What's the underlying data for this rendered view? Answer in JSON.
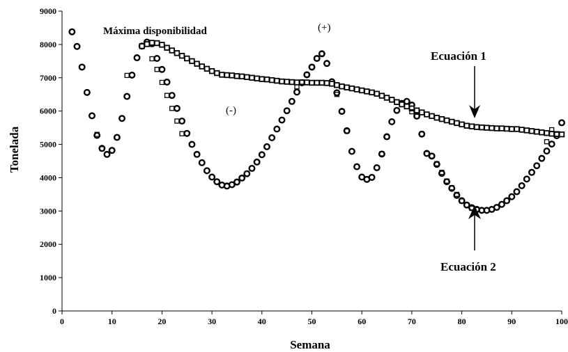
{
  "chart_data": {
    "type": "scatter",
    "xlabel": "Semana",
    "ylabel": "Tonelada",
    "xlim": [
      0,
      100
    ],
    "ylim": [
      0,
      9000
    ],
    "x_ticks": [
      "0",
      "10",
      "20",
      "30",
      "40",
      "50",
      "60",
      "70",
      "80",
      "90",
      "100"
    ],
    "y_ticks": [
      "0",
      "1000",
      "2000",
      "3000",
      "4000",
      "5000",
      "6000",
      "7000",
      "8000",
      "9000"
    ],
    "annotations": {
      "max_disp": "Máxima disponibilidad",
      "plus": "(+)",
      "minus": "(-)",
      "eq1": "Ecuación 1",
      "eq2": "Ecuación 2"
    },
    "series": [
      {
        "marker": "circle",
        "x": [
          2,
          3,
          4,
          5,
          6,
          7,
          8,
          9,
          10,
          11,
          12,
          13,
          14,
          15,
          16,
          17,
          18,
          19,
          20,
          21,
          22,
          23,
          24,
          25,
          26,
          27,
          28,
          29,
          30,
          31,
          32,
          33,
          34,
          35,
          36,
          37,
          38,
          39,
          40,
          41,
          42,
          43,
          44,
          45,
          46,
          47,
          48,
          49,
          50,
          51,
          52,
          53,
          54,
          55,
          56,
          57,
          58,
          59,
          60,
          61,
          62,
          63,
          64,
          65,
          66,
          67,
          68,
          69,
          70,
          71,
          72,
          73,
          74,
          75,
          76,
          77,
          78,
          79,
          80,
          81,
          82,
          83,
          84,
          85,
          86,
          87,
          88,
          89,
          90,
          91,
          92,
          93,
          94,
          95,
          96,
          97,
          98,
          99,
          100
        ],
        "y": [
          8380,
          7940,
          7320,
          6560,
          5860,
          5270,
          4880,
          4700,
          4820,
          5210,
          5780,
          6440,
          7080,
          7600,
          7950,
          8070,
          8020,
          7580,
          7250,
          6870,
          6470,
          6080,
          5700,
          5330,
          5000,
          4700,
          4450,
          4210,
          4020,
          3880,
          3780,
          3750,
          3790,
          3870,
          3990,
          4120,
          4280,
          4470,
          4690,
          4930,
          5200,
          5460,
          5730,
          6010,
          6290,
          6570,
          6850,
          7090,
          7320,
          7580,
          7720,
          7430,
          6880,
          6550,
          5990,
          5410,
          4790,
          4330,
          4020,
          3950,
          4010,
          4300,
          4710,
          5230,
          5680,
          6020,
          6230,
          6290,
          6180,
          5850,
          5310,
          4730,
          4650,
          4400,
          4130,
          3880,
          3680,
          3470,
          3310,
          3180,
          3100,
          3050,
          3020,
          3020,
          3050,
          3110,
          3200,
          3310,
          3430,
          3580,
          3760,
          3960,
          4160,
          4360,
          4580,
          4800,
          5010,
          5260,
          5650
        ]
      },
      {
        "marker": "square",
        "x": [
          16,
          17,
          18,
          19,
          20,
          21,
          22,
          23,
          24,
          25,
          26,
          27,
          28,
          29,
          30,
          31,
          32,
          33,
          34,
          35,
          36,
          37,
          38,
          39,
          40,
          41,
          42,
          43,
          44,
          45,
          46,
          47,
          48,
          49,
          50,
          51,
          52,
          53,
          54,
          55,
          56,
          57,
          58,
          59,
          60,
          61,
          62,
          63,
          64,
          65,
          66,
          67,
          68,
          69,
          70,
          71,
          72,
          73,
          74,
          75,
          76,
          77,
          78,
          79,
          80,
          81,
          82,
          83,
          84,
          85,
          86,
          87,
          88,
          89,
          90,
          91,
          92,
          93,
          94,
          95,
          96,
          97,
          98,
          99,
          100
        ],
        "y": [
          7950,
          8010,
          8050,
          8040,
          7990,
          7900,
          7820,
          7740,
          7660,
          7580,
          7500,
          7420,
          7340,
          7270,
          7200,
          7140,
          7090,
          7080,
          7070,
          7050,
          7040,
          7020,
          7000,
          6980,
          6960,
          6950,
          6930,
          6910,
          6890,
          6880,
          6870,
          6860,
          6860,
          6860,
          6850,
          6850,
          6850,
          6840,
          6820,
          6780,
          6740,
          6710,
          6680,
          6650,
          6620,
          6590,
          6560,
          6520,
          6460,
          6400,
          6340,
          6270,
          6200,
          6140,
          6080,
          6020,
          5960,
          5900,
          5850,
          5800,
          5760,
          5720,
          5680,
          5640,
          5600,
          5560,
          5540,
          5520,
          5510,
          5500,
          5490,
          5480,
          5480,
          5470,
          5460,
          5460,
          5440,
          5420,
          5400,
          5380,
          5360,
          5340,
          5320,
          5310,
          5300
        ]
      },
      {
        "marker": "square-open",
        "x": [
          7,
          8,
          11,
          13,
          18,
          19,
          20,
          21,
          22,
          23,
          24,
          47,
          48,
          49,
          50,
          51,
          52,
          55,
          56,
          57,
          64,
          65,
          70,
          71,
          72,
          73,
          74,
          75,
          76,
          77,
          78,
          79,
          80,
          81,
          82,
          83,
          84,
          97,
          98,
          99
        ],
        "y": [
          5300,
          4870,
          5210,
          7070,
          7570,
          7250,
          6860,
          6470,
          6080,
          5700,
          5320,
          6730,
          6870,
          7090,
          7320,
          7580,
          7720,
          6500,
          5990,
          5400,
          4720,
          5230,
          5980,
          5840,
          5310,
          4720,
          4650,
          4420,
          4160,
          3900,
          3700,
          3500,
          3300,
          3180,
          3080,
          3040,
          3020,
          5080,
          5440,
          5300
        ]
      }
    ]
  }
}
